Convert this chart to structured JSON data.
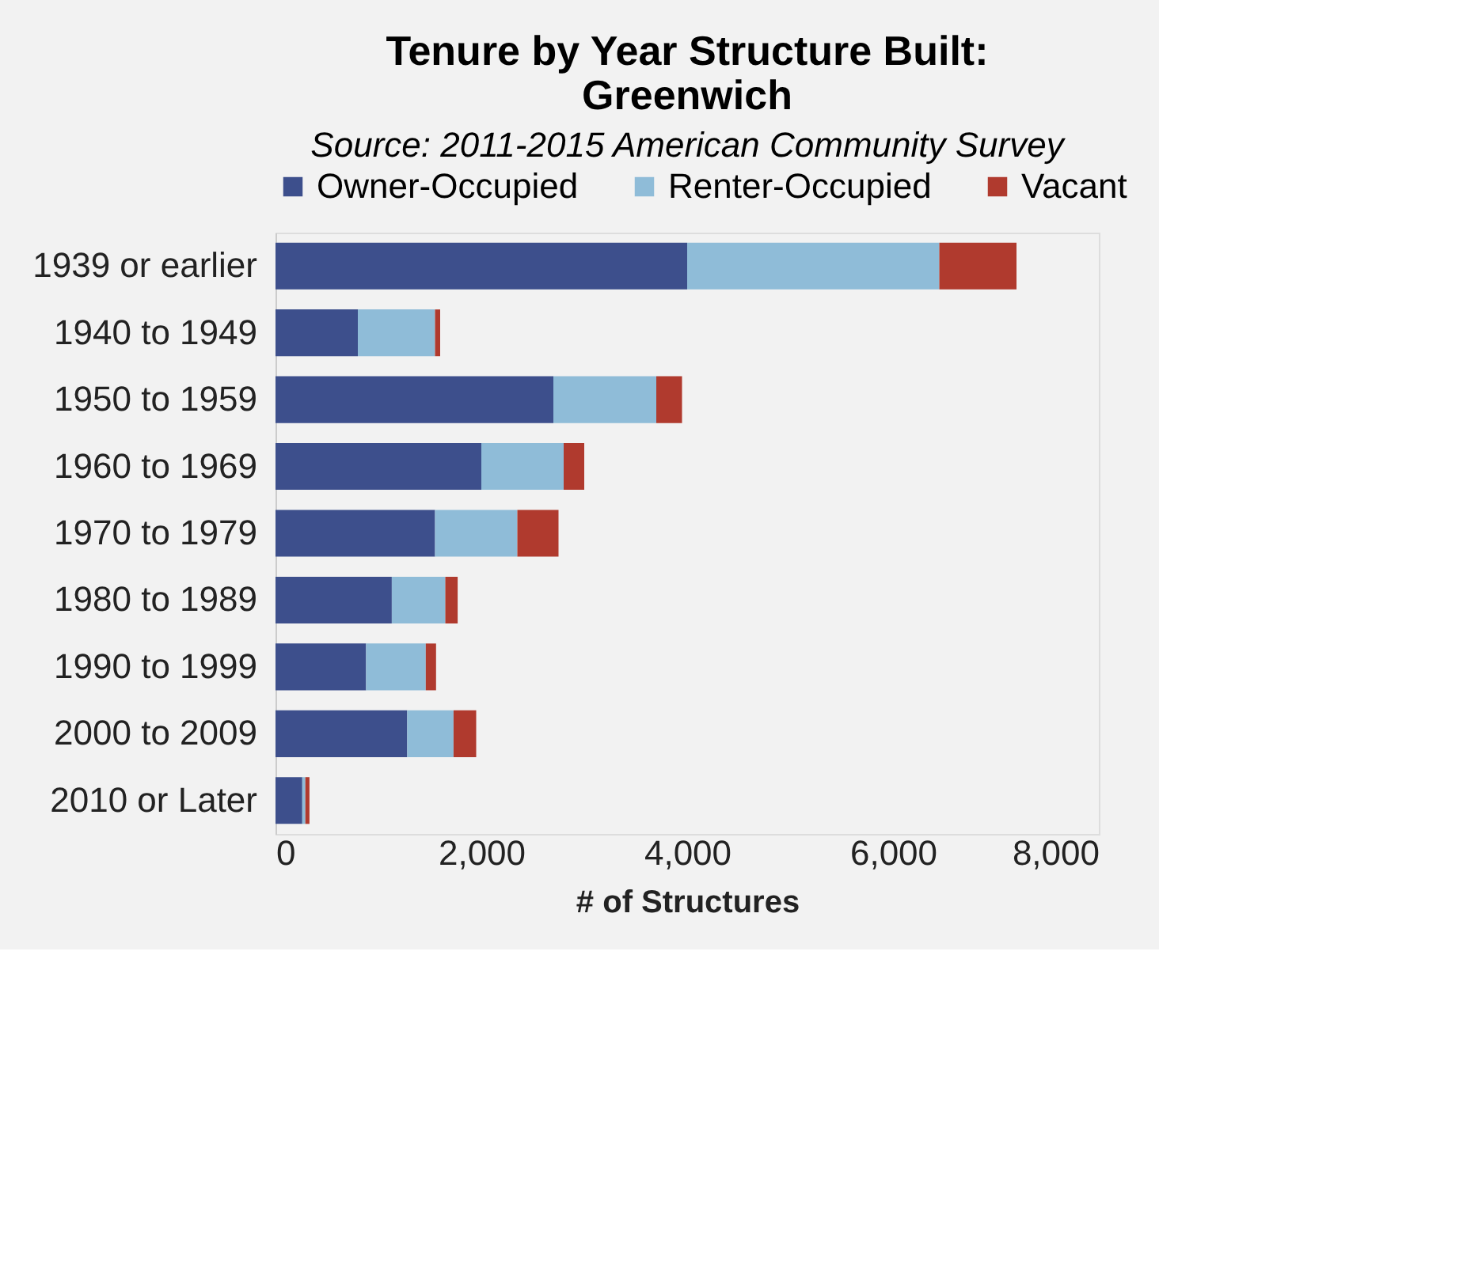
{
  "chart_data": {
    "type": "bar",
    "orientation": "horizontal",
    "stacked": true,
    "title": "Tenure by Year Structure Built:\nGreenwich",
    "subtitle": "Source: 2011-2015  American Community Survey",
    "xlabel": "# of Structures",
    "categories": [
      "1939 or earlier",
      "1940 to 1949",
      "1950 to 1959",
      "1960 to 1969",
      "1970 to 1979",
      "1980 to 1989",
      "1990 to 1999",
      "2000 to 2009",
      "2010 or Later"
    ],
    "series": [
      {
        "name": "Owner-Occupied",
        "color": "#3d4f8c",
        "values": [
          4000,
          800,
          2700,
          2000,
          1550,
          1130,
          880,
          1280,
          260
        ]
      },
      {
        "name": "Renter-Occupied",
        "color": "#8fbcd8",
        "values": [
          2450,
          750,
          1000,
          800,
          800,
          520,
          580,
          450,
          30
        ]
      },
      {
        "name": "Vacant",
        "color": "#b03a2e",
        "values": [
          750,
          50,
          250,
          200,
          400,
          120,
          100,
          220,
          40
        ]
      }
    ],
    "xlim": [
      0,
      8000
    ],
    "xticks": [
      0,
      {
        "value": 2000,
        "label": "2,000"
      },
      {
        "value": 4000,
        "label": "4,000"
      },
      {
        "value": 6000,
        "label": "6,000"
      },
      {
        "value": 8000,
        "label": "8,000"
      }
    ],
    "legend": "top",
    "grid": false
  }
}
